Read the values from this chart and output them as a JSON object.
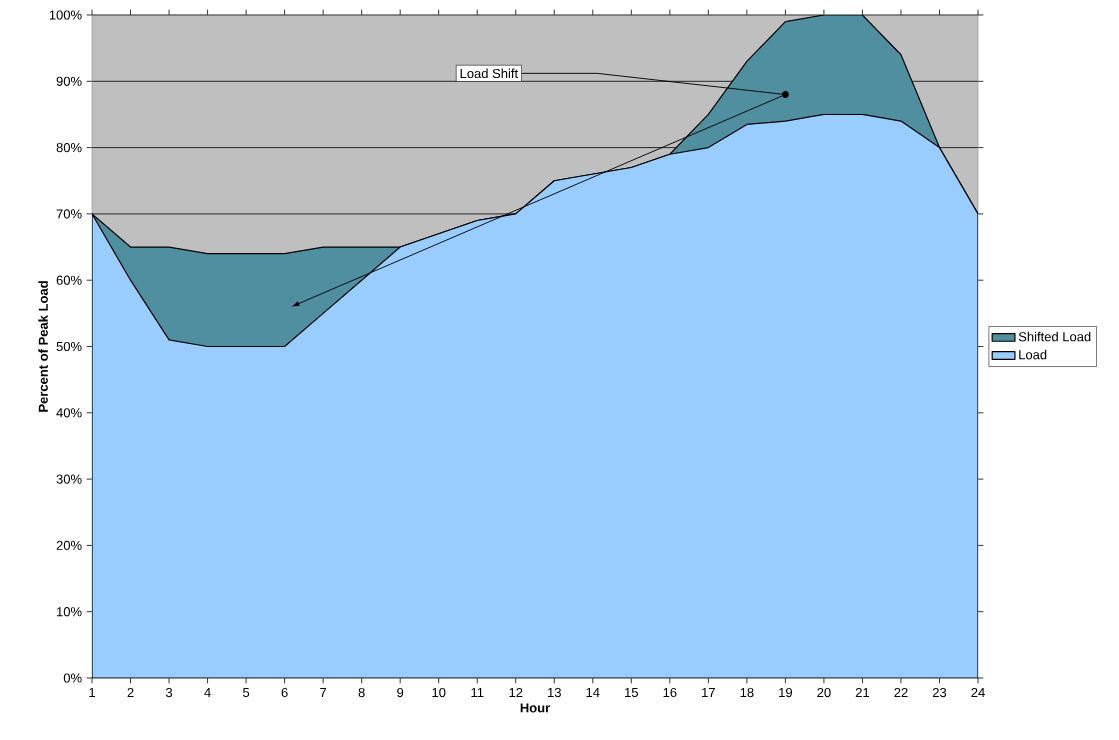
{
  "chart_data": {
    "type": "area",
    "xlabel": "Hour",
    "ylabel": "Percent of Peak Load",
    "x": [
      1,
      2,
      3,
      4,
      5,
      6,
      7,
      8,
      9,
      10,
      11,
      12,
      13,
      14,
      15,
      16,
      17,
      18,
      19,
      20,
      21,
      22,
      23,
      24
    ],
    "series": [
      {
        "name": "Shifted Load",
        "color": "#4f8f9f",
        "values": [
          70,
          65,
          65,
          64,
          64,
          64,
          65,
          65,
          65,
          67,
          69,
          70,
          75,
          76,
          77,
          79,
          85,
          93,
          99,
          100,
          100,
          94,
          80,
          70
        ]
      },
      {
        "name": "Load",
        "color": "#99ccff",
        "values": [
          70,
          60,
          51,
          50,
          50,
          50,
          55,
          60,
          65,
          67,
          69,
          70,
          75,
          76,
          77,
          79,
          80,
          83.5,
          84,
          85,
          85,
          84,
          80,
          70
        ]
      }
    ],
    "xlim": [
      1,
      24
    ],
    "ylim": [
      0,
      100
    ],
    "xticks": [
      1,
      2,
      3,
      4,
      5,
      6,
      7,
      8,
      9,
      10,
      11,
      12,
      13,
      14,
      15,
      16,
      17,
      18,
      19,
      20,
      21,
      22,
      23,
      24
    ],
    "yticks": [
      {
        "value": 0,
        "label": "0%"
      },
      {
        "value": 10,
        "label": "10%"
      },
      {
        "value": 20,
        "label": "20%"
      },
      {
        "value": 30,
        "label": "30%"
      },
      {
        "value": 40,
        "label": "40%"
      },
      {
        "value": 50,
        "label": "50%"
      },
      {
        "value": 60,
        "label": "60%"
      },
      {
        "value": 70,
        "label": "70%"
      },
      {
        "value": 80,
        "label": "80%"
      },
      {
        "value": 90,
        "label": "90%"
      },
      {
        "value": 100,
        "label": "100%"
      }
    ],
    "grid": "y",
    "legend": "right",
    "annotations": [
      {
        "text": "Load Shift",
        "x": 19,
        "y": 88
      }
    ]
  }
}
